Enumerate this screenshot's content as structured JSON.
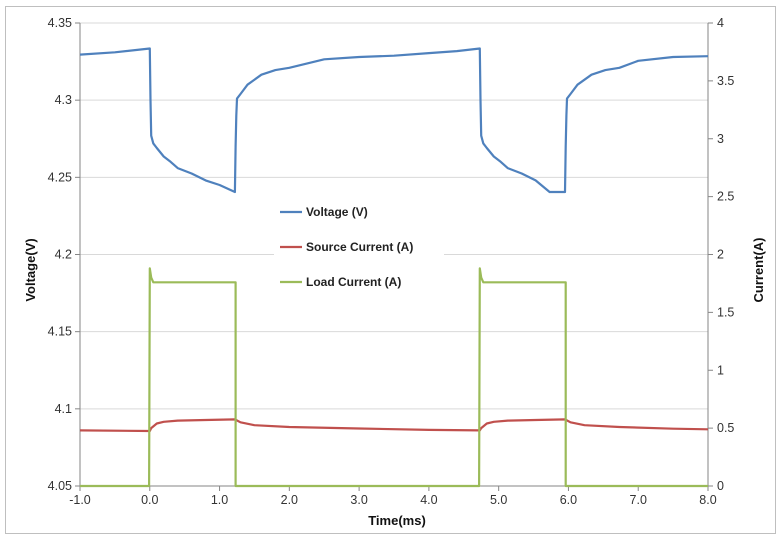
{
  "chart_data": {
    "type": "line",
    "xlabel": "Time(ms)",
    "ylabel": "Voltage(V)",
    "ylabel_right": "Current(A)",
    "xlim": [
      -1.0,
      8.0
    ],
    "ylim": [
      4.05,
      4.35
    ],
    "ylim_right": [
      0,
      4
    ],
    "x_ticks": [
      "-1.0",
      "0.0",
      "1.0",
      "2.0",
      "3.0",
      "4.0",
      "5.0",
      "6.0",
      "7.0",
      "8.0"
    ],
    "y_ticks": [
      "4.05",
      "4.1",
      "4.15",
      "4.2",
      "4.25",
      "4.3",
      "4.35"
    ],
    "y_ticks_right": [
      "0",
      "0.5",
      "1",
      "1.5",
      "2",
      "2.5",
      "3",
      "3.5",
      "4"
    ],
    "grid": "horizontal",
    "legend_position": "center",
    "series": [
      {
        "name": "Voltage (V)",
        "axis": "left",
        "color": "#4F81BD",
        "x": [
          -1.0,
          -0.5,
          0.0,
          0.01,
          0.02,
          0.05,
          0.1,
          0.2,
          0.3,
          0.4,
          0.6,
          0.8,
          1.0,
          1.22,
          1.23,
          1.24,
          1.25,
          1.3,
          1.4,
          1.6,
          1.8,
          2.0,
          2.5,
          3.0,
          3.5,
          4.0,
          4.4,
          4.73,
          4.74,
          4.75,
          4.78,
          4.83,
          4.93,
          5.03,
          5.13,
          5.33,
          5.53,
          5.73,
          5.95,
          5.96,
          5.97,
          5.98,
          6.03,
          6.13,
          6.33,
          6.53,
          6.73,
          7.0,
          7.5,
          8.0
        ],
        "values": [
          4.3295,
          4.331,
          4.3335,
          4.3,
          4.277,
          4.272,
          4.269,
          4.2635,
          4.26,
          4.256,
          4.2525,
          4.248,
          4.245,
          4.2405,
          4.27,
          4.29,
          4.301,
          4.304,
          4.31,
          4.3165,
          4.3195,
          4.321,
          4.3265,
          4.328,
          4.3288,
          4.3305,
          4.3318,
          4.3335,
          4.3,
          4.277,
          4.272,
          4.269,
          4.2635,
          4.26,
          4.256,
          4.2525,
          4.248,
          4.2405,
          4.2405,
          4.27,
          4.29,
          4.301,
          4.304,
          4.31,
          4.3165,
          4.3195,
          4.321,
          4.3255,
          4.328,
          4.3285
        ]
      },
      {
        "name": "Source Current (A)",
        "axis": "right",
        "color": "#C0504D",
        "x": [
          -1.0,
          0.0,
          0.02,
          0.1,
          0.2,
          0.4,
          0.8,
          1.22,
          1.3,
          1.5,
          2.0,
          3.0,
          4.0,
          4.73,
          4.75,
          4.83,
          4.93,
          5.13,
          5.53,
          5.95,
          6.03,
          6.23,
          6.73,
          7.5,
          8.0
        ],
        "values": [
          0.48,
          0.475,
          0.5,
          0.54,
          0.555,
          0.565,
          0.57,
          0.575,
          0.55,
          0.525,
          0.51,
          0.497,
          0.485,
          0.48,
          0.5,
          0.54,
          0.555,
          0.565,
          0.57,
          0.575,
          0.55,
          0.525,
          0.51,
          0.495,
          0.49
        ]
      },
      {
        "name": "Load Current (A)",
        "axis": "right",
        "color": "#9BBB59",
        "x": [
          -1.0,
          -0.01,
          0.0,
          0.02,
          0.05,
          0.15,
          1.23,
          1.23,
          1.24,
          4.72,
          4.73,
          4.75,
          4.78,
          4.88,
          5.96,
          5.96,
          5.97,
          8.0
        ],
        "values": [
          0,
          0,
          1.88,
          1.8,
          1.76,
          1.76,
          1.76,
          0,
          0,
          0,
          1.88,
          1.8,
          1.76,
          1.76,
          1.76,
          0,
          0,
          0
        ]
      }
    ]
  }
}
